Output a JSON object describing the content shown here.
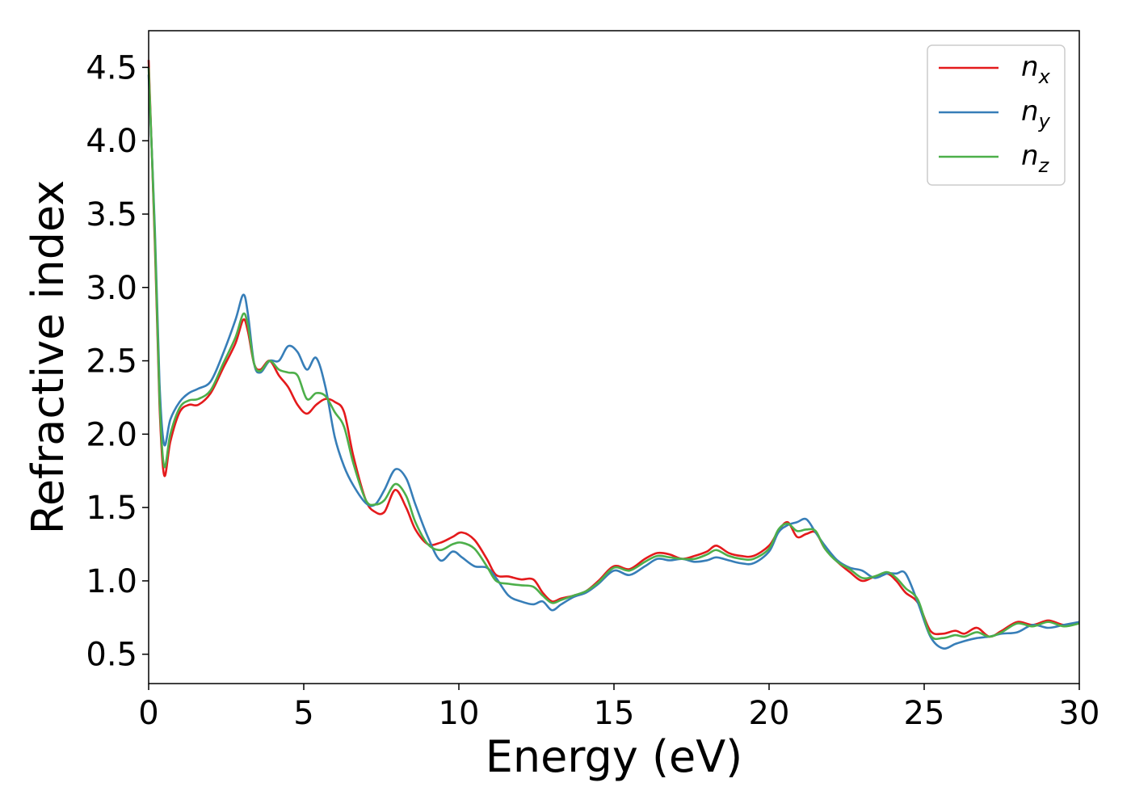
{
  "chart_data": {
    "type": "line",
    "xlabel": "Energy (eV)",
    "ylabel": "Refractive index",
    "xlim": [
      0,
      30
    ],
    "ylim": [
      0.3,
      4.75
    ],
    "xticks": [
      "0",
      "5",
      "10",
      "15",
      "20",
      "25",
      "30"
    ],
    "yticks": [
      "0.5",
      "1.0",
      "1.5",
      "2.0",
      "2.5",
      "3.0",
      "3.5",
      "4.0",
      "4.5"
    ],
    "grid": false,
    "legend_position": "top-right",
    "series": [
      {
        "name": "n",
        "subscript": "x",
        "color": "#e41a1c",
        "x": [
          0,
          0.2,
          0.35,
          0.5,
          0.7,
          1.0,
          1.3,
          1.6,
          2.0,
          2.4,
          2.8,
          3.05,
          3.2,
          3.4,
          3.6,
          3.9,
          4.2,
          4.5,
          4.8,
          5.1,
          5.4,
          5.7,
          6.0,
          6.3,
          6.6,
          7.0,
          7.3,
          7.6,
          7.95,
          8.3,
          8.6,
          9.0,
          9.4,
          9.8,
          10.1,
          10.5,
          10.9,
          11.2,
          11.6,
          12.0,
          12.4,
          12.7,
          13.0,
          13.3,
          13.7,
          14.1,
          14.5,
          15.0,
          15.5,
          16.0,
          16.4,
          16.8,
          17.2,
          17.6,
          18.0,
          18.3,
          18.7,
          19.1,
          19.5,
          20.0,
          20.3,
          20.6,
          20.9,
          21.2,
          21.5,
          21.8,
          22.2,
          22.6,
          23.0,
          23.4,
          23.8,
          24.1,
          24.4,
          24.8,
          25.2,
          25.6,
          26.0,
          26.3,
          26.7,
          27.1,
          27.5,
          28.0,
          28.5,
          29.0,
          29.5,
          30.0
        ],
        "y": [
          4.55,
          3.3,
          2.2,
          1.72,
          1.95,
          2.15,
          2.2,
          2.2,
          2.28,
          2.45,
          2.62,
          2.78,
          2.7,
          2.48,
          2.44,
          2.5,
          2.4,
          2.32,
          2.2,
          2.14,
          2.2,
          2.24,
          2.22,
          2.15,
          1.85,
          1.55,
          1.47,
          1.47,
          1.62,
          1.5,
          1.35,
          1.25,
          1.26,
          1.3,
          1.33,
          1.28,
          1.15,
          1.04,
          1.03,
          1.01,
          1.01,
          0.92,
          0.86,
          0.88,
          0.9,
          0.93,
          1.0,
          1.1,
          1.08,
          1.15,
          1.19,
          1.18,
          1.15,
          1.17,
          1.2,
          1.24,
          1.19,
          1.17,
          1.17,
          1.24,
          1.34,
          1.4,
          1.3,
          1.32,
          1.33,
          1.22,
          1.13,
          1.06,
          1.0,
          1.03,
          1.05,
          1.0,
          0.92,
          0.85,
          0.66,
          0.64,
          0.66,
          0.64,
          0.68,
          0.62,
          0.66,
          0.72,
          0.7,
          0.73,
          0.7,
          0.71
        ]
      },
      {
        "name": "n",
        "subscript": "y",
        "color": "#377eb8",
        "x": [
          0,
          0.2,
          0.35,
          0.5,
          0.7,
          1.0,
          1.3,
          1.6,
          2.0,
          2.4,
          2.8,
          3.05,
          3.2,
          3.4,
          3.6,
          3.9,
          4.2,
          4.5,
          4.8,
          5.1,
          5.4,
          5.7,
          6.0,
          6.3,
          6.6,
          7.0,
          7.3,
          7.6,
          7.95,
          8.3,
          8.6,
          9.0,
          9.4,
          9.8,
          10.1,
          10.5,
          10.9,
          11.2,
          11.6,
          12.0,
          12.4,
          12.7,
          13.0,
          13.3,
          13.7,
          14.1,
          14.5,
          15.0,
          15.5,
          16.0,
          16.4,
          16.8,
          17.2,
          17.6,
          18.0,
          18.3,
          18.7,
          19.1,
          19.5,
          20.0,
          20.3,
          20.6,
          20.9,
          21.2,
          21.5,
          21.8,
          22.2,
          22.6,
          23.0,
          23.4,
          23.8,
          24.1,
          24.4,
          24.8,
          25.2,
          25.6,
          26.0,
          26.3,
          26.7,
          27.1,
          27.5,
          28.0,
          28.5,
          29.0,
          29.5,
          30.0
        ],
        "y": [
          4.45,
          3.4,
          2.35,
          1.93,
          2.1,
          2.22,
          2.28,
          2.31,
          2.36,
          2.55,
          2.78,
          2.95,
          2.82,
          2.48,
          2.42,
          2.5,
          2.5,
          2.6,
          2.56,
          2.44,
          2.52,
          2.32,
          1.98,
          1.78,
          1.65,
          1.53,
          1.52,
          1.62,
          1.76,
          1.7,
          1.52,
          1.3,
          1.14,
          1.2,
          1.16,
          1.1,
          1.09,
          1.02,
          0.9,
          0.86,
          0.84,
          0.86,
          0.8,
          0.84,
          0.89,
          0.92,
          0.98,
          1.07,
          1.04,
          1.1,
          1.15,
          1.14,
          1.15,
          1.13,
          1.14,
          1.16,
          1.14,
          1.12,
          1.12,
          1.2,
          1.33,
          1.38,
          1.4,
          1.42,
          1.33,
          1.24,
          1.14,
          1.09,
          1.07,
          1.02,
          1.05,
          1.05,
          1.05,
          0.85,
          0.62,
          0.54,
          0.57,
          0.59,
          0.61,
          0.62,
          0.64,
          0.65,
          0.7,
          0.68,
          0.7,
          0.72
        ]
      },
      {
        "name": "n",
        "subscript": "z",
        "color": "#4daf4a",
        "x": [
          0,
          0.2,
          0.35,
          0.5,
          0.7,
          1.0,
          1.3,
          1.6,
          2.0,
          2.4,
          2.8,
          3.05,
          3.2,
          3.4,
          3.6,
          3.9,
          4.2,
          4.5,
          4.8,
          5.1,
          5.4,
          5.7,
          6.0,
          6.3,
          6.6,
          7.0,
          7.3,
          7.6,
          7.95,
          8.3,
          8.6,
          9.0,
          9.4,
          9.8,
          10.1,
          10.5,
          10.9,
          11.2,
          11.6,
          12.0,
          12.4,
          12.7,
          13.0,
          13.3,
          13.7,
          14.1,
          14.5,
          15.0,
          15.5,
          16.0,
          16.4,
          16.8,
          17.2,
          17.6,
          18.0,
          18.3,
          18.7,
          19.1,
          19.5,
          20.0,
          20.3,
          20.6,
          20.9,
          21.2,
          21.5,
          21.8,
          22.2,
          22.6,
          23.0,
          23.4,
          23.8,
          24.1,
          24.4,
          24.8,
          25.2,
          25.6,
          26.0,
          26.3,
          26.7,
          27.1,
          27.5,
          28.0,
          28.5,
          29.0,
          29.5,
          30.0
        ],
        "y": [
          4.5,
          3.35,
          2.25,
          1.78,
          2.0,
          2.18,
          2.23,
          2.24,
          2.3,
          2.48,
          2.66,
          2.82,
          2.74,
          2.48,
          2.43,
          2.5,
          2.44,
          2.42,
          2.4,
          2.24,
          2.28,
          2.26,
          2.15,
          2.05,
          1.8,
          1.55,
          1.52,
          1.55,
          1.66,
          1.58,
          1.4,
          1.25,
          1.21,
          1.25,
          1.26,
          1.22,
          1.1,
          1.0,
          0.98,
          0.97,
          0.96,
          0.9,
          0.85,
          0.87,
          0.9,
          0.93,
          0.99,
          1.09,
          1.07,
          1.13,
          1.17,
          1.16,
          1.15,
          1.15,
          1.18,
          1.21,
          1.17,
          1.15,
          1.15,
          1.22,
          1.35,
          1.39,
          1.34,
          1.35,
          1.34,
          1.22,
          1.13,
          1.08,
          1.02,
          1.03,
          1.06,
          1.02,
          0.95,
          0.87,
          0.63,
          0.61,
          0.63,
          0.62,
          0.65,
          0.62,
          0.65,
          0.71,
          0.69,
          0.72,
          0.69,
          0.71
        ]
      }
    ]
  }
}
